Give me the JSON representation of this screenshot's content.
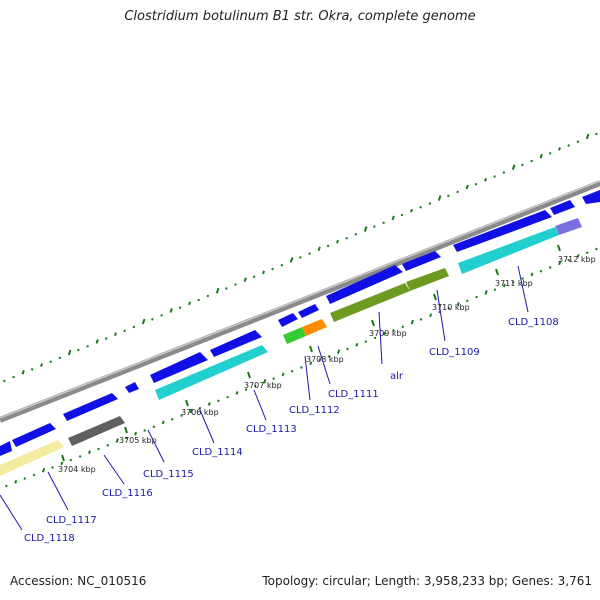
{
  "title": "Clostridium botulinum B1 str. Okra, complete genome",
  "footer": {
    "accession": "Accession: NC_010516",
    "topology": "Topology: circular; Length: 3,958,233 bp; Genes: 3,761"
  },
  "kbp_labels": [
    "3704 kbp",
    "3705 kbp",
    "3706 kbp",
    "3707 kbp",
    "3708 kbp",
    "3709 kbp",
    "3710 kbp",
    "3711 kbp",
    "3712 kbp"
  ],
  "gene_labels": [
    "CLD_1118",
    "CLD_1117",
    "CLD_1116",
    "CLD_1115",
    "CLD_1114",
    "CLD_1113",
    "CLD_1112",
    "CLD_1111",
    "alr",
    "CLD_1109",
    "CLD_1108"
  ],
  "colors": {
    "cds": "#1010e6",
    "backbone": "#8a8a8a",
    "gc_tick": "#1a7a1a",
    "label": "#1a1aa8",
    "feature_cyan": "#22cfcf",
    "feature_yellow": "#f2eca0",
    "feature_gray": "#606060",
    "feature_olive": "#6f9a22",
    "feature_green": "#33cc33",
    "feature_orange": "#ff8c00",
    "feature_lavender": "#7a6fe0"
  }
}
